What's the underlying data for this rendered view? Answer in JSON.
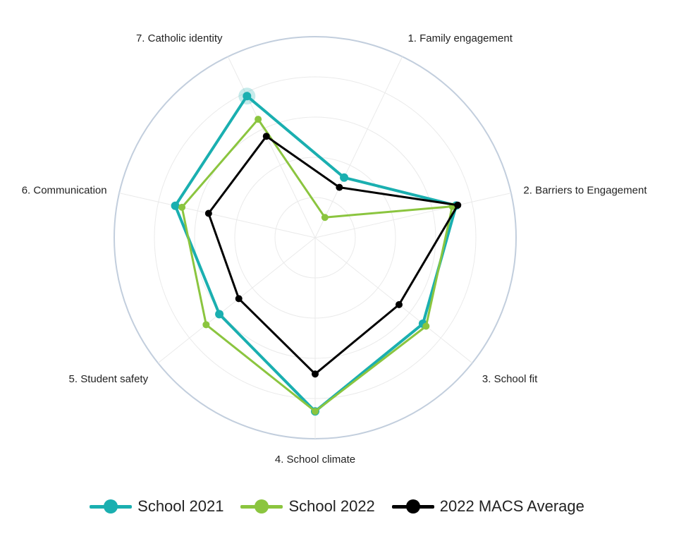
{
  "chart_data": {
    "type": "radar",
    "axes": [
      "1. Family engagement",
      "2. Barriers to Engagement",
      "3. School fit",
      "4. School climate",
      "5. Student safety",
      "6. Communication",
      "7. Catholic identity"
    ],
    "range": [
      0,
      5
    ],
    "grid_levels": 5,
    "legend_position": "bottom",
    "series": [
      {
        "name": "School 2021",
        "color": "#1AAFB0",
        "values": [
          1.66,
          3.6,
          3.43,
          4.32,
          3.05,
          3.57,
          3.91
        ],
        "highlight_index": 6
      },
      {
        "name": "School 2022",
        "color": "#8BC53F",
        "values": [
          0.56,
          3.5,
          3.53,
          4.32,
          3.47,
          3.4,
          3.27
        ]
      },
      {
        "name": "2022 MACS Average",
        "color": "#000000",
        "values": [
          1.39,
          3.64,
          2.67,
          3.39,
          2.43,
          2.72,
          2.8
        ]
      }
    ]
  }
}
